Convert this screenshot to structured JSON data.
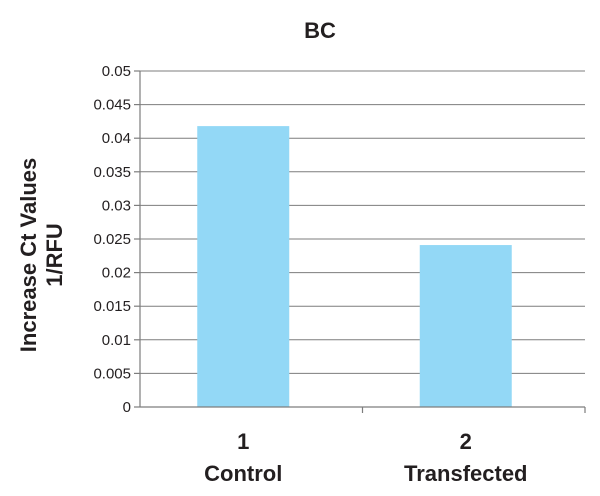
{
  "chart_data": {
    "type": "bar",
    "title": "BC",
    "ylabel_line1": "Increase Ct Values",
    "ylabel_line2": "1/RFU",
    "xlabel": "",
    "categories": [
      {
        "number": "1",
        "label": "Control"
      },
      {
        "number": "2",
        "label": "Transfected"
      }
    ],
    "values": [
      0.0418,
      0.0241
    ],
    "ylim": [
      0,
      0.05
    ],
    "yticks": [
      "0.05",
      "0.045",
      "0.04",
      "0.035",
      "0.03",
      "0.025",
      "0.02",
      "0.015",
      "0.01",
      "0.005",
      "0"
    ],
    "ytick_values": [
      0.05,
      0.045,
      0.04,
      0.035,
      0.03,
      0.025,
      0.02,
      0.015,
      0.01,
      0.005,
      0
    ],
    "grid": true,
    "legend": "none",
    "bar_color": "#93d8f6"
  }
}
